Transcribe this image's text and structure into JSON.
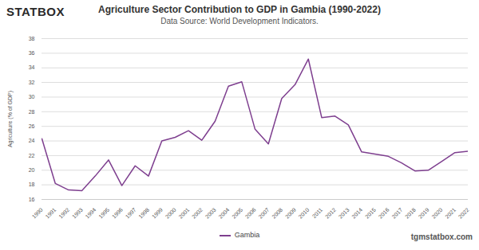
{
  "chart_data": {
    "type": "line",
    "title": "Agriculture Sector Contribution to GDP in Gambia (1990-2022)",
    "subtitle": "Data Source: World Development Indicators.",
    "logo": "STATBOX",
    "credit": "tgmstatbox.com",
    "y_label": "Agriculture (% of GDP)",
    "x": [
      1990,
      1991,
      1992,
      1993,
      1994,
      1995,
      1996,
      1997,
      1998,
      1999,
      2000,
      2001,
      2002,
      2003,
      2004,
      2005,
      2006,
      2007,
      2008,
      2009,
      2010,
      2011,
      2012,
      2013,
      2014,
      2015,
      2016,
      2017,
      2018,
      2019,
      2020,
      2021,
      2022
    ],
    "series": [
      {
        "name": "Gambia",
        "color": "#7e3f8f",
        "values": [
          24.3,
          18.2,
          17.3,
          17.2,
          19.2,
          21.4,
          17.9,
          20.6,
          19.2,
          24.0,
          24.5,
          25.4,
          24.1,
          26.7,
          31.5,
          32.1,
          25.6,
          23.6,
          29.8,
          31.7,
          35.2,
          27.2,
          27.4,
          26.2,
          22.5,
          22.2,
          21.9,
          21.0,
          19.9,
          20.0,
          21.2,
          22.4,
          22.6
        ]
      }
    ],
    "xlim": [
      1990,
      2022
    ],
    "xticks": [
      1990,
      1991,
      1992,
      1993,
      1994,
      1995,
      1996,
      1997,
      1998,
      1999,
      2000,
      2001,
      2002,
      2003,
      2004,
      2005,
      2006,
      2007,
      2008,
      2009,
      2010,
      2011,
      2012,
      2013,
      2014,
      2015,
      2016,
      2017,
      2018,
      2019,
      2020,
      2021,
      2022
    ],
    "ylim": [
      16,
      38
    ],
    "yticks": [
      16,
      18,
      20,
      22,
      24,
      26,
      28,
      30,
      32,
      34,
      36,
      38
    ],
    "grid": true,
    "legend": "bottom"
  }
}
